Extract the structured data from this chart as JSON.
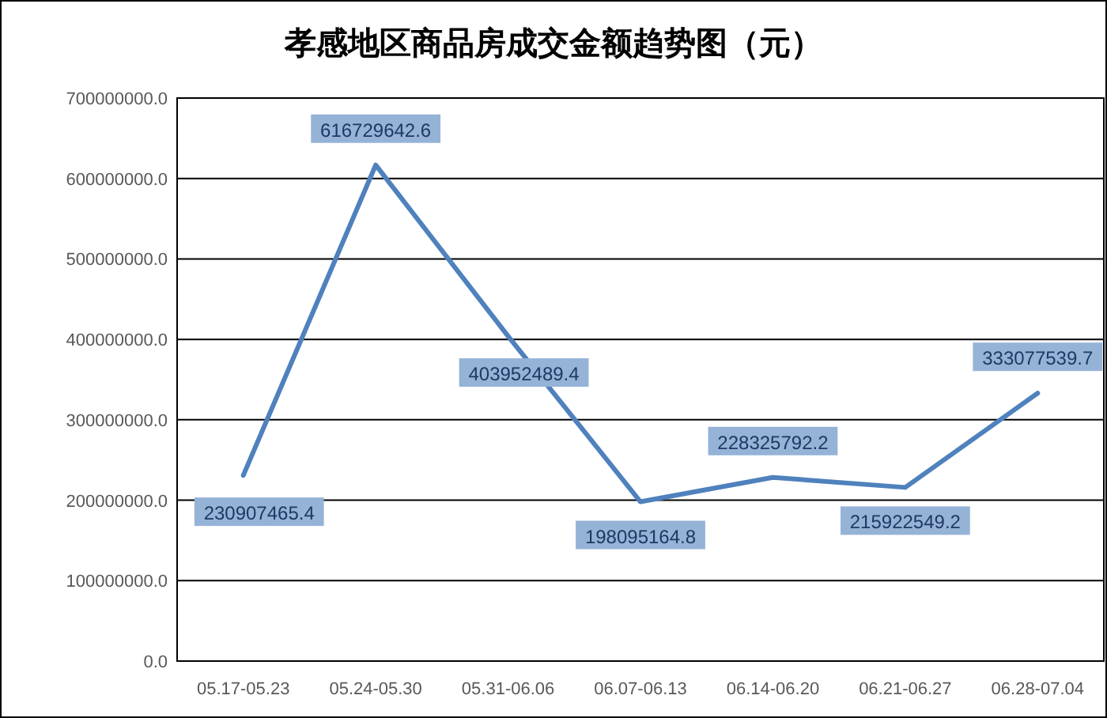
{
  "chart_data": {
    "type": "line",
    "title": "孝感地区商品房成交金额趋势图（元）",
    "categories": [
      "05.17-05.23",
      "05.24-05.30",
      "05.31-06.06",
      "06.07-06.13",
      "06.14-06.20",
      "06.21-06.27",
      "06.28-07.04"
    ],
    "series": [
      {
        "color": "#4f81bd",
        "values": [
          230907465.4,
          616729642.6,
          403952489.4,
          198095164.8,
          228325792.2,
          215922549.2,
          333077539.7
        ]
      }
    ],
    "ylim": [
      0,
      700000000
    ],
    "yticks": [
      {
        "value": 0,
        "label": "0.0"
      },
      {
        "value": 100000000,
        "label": "100000000.0"
      },
      {
        "value": 200000000,
        "label": "200000000.0"
      },
      {
        "value": 300000000,
        "label": "300000000.0"
      },
      {
        "value": 400000000,
        "label": "400000000.0"
      },
      {
        "value": 500000000,
        "label": "500000000.0"
      },
      {
        "value": 600000000,
        "label": "600000000.0"
      },
      {
        "value": 700000000,
        "label": "700000000.0"
      }
    ],
    "grid": "y",
    "data_labels": true,
    "marker": "none",
    "line_style": "solid"
  }
}
